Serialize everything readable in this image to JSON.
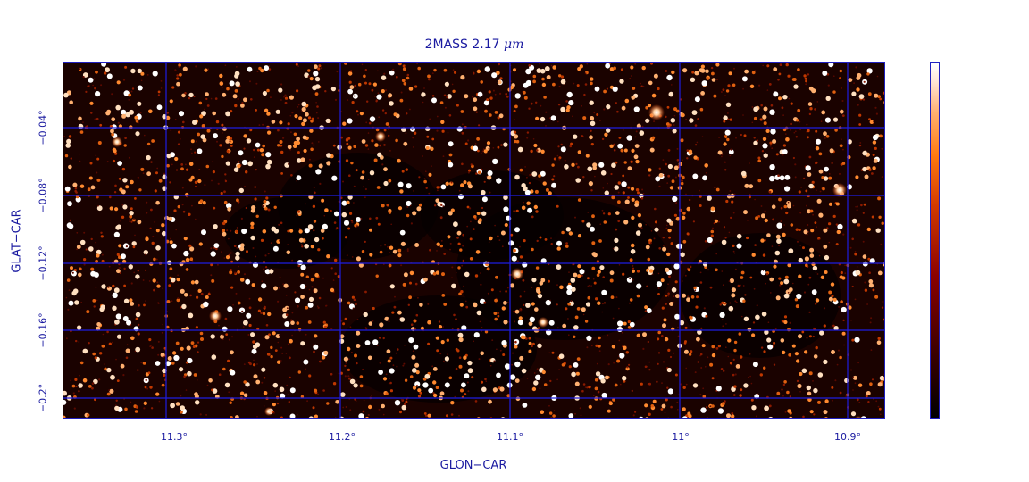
{
  "figure": {
    "title_prefix": "2MASS 2.17 ",
    "title_unit": "μm",
    "xlabel": "GLON−CAR",
    "ylabel": "GLAT−CAR",
    "x_ticks": [
      "11.3°",
      "11.2°",
      "11.1°",
      "11°",
      "10.9°"
    ],
    "y_ticks": [
      "−0.04°",
      "−0.08°",
      "−0.12°",
      "−0.16°",
      "−0.2°"
    ],
    "grid_color": "#1e1ee0",
    "colormap": "heat",
    "colorbar": true
  }
}
